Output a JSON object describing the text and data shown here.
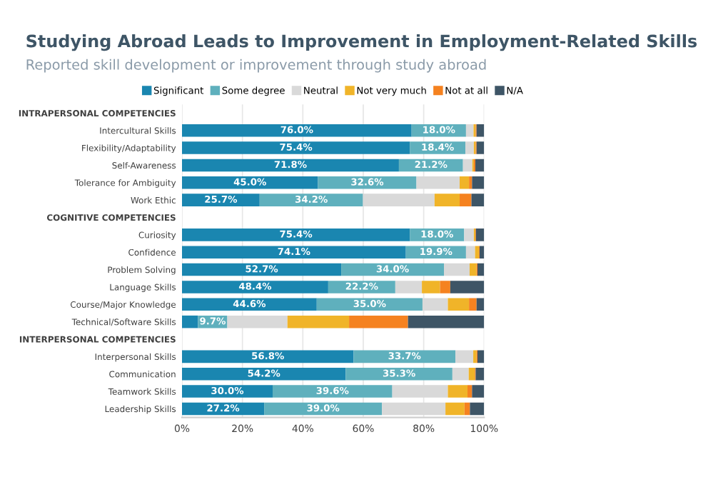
{
  "chart_data": {
    "type": "bar",
    "orientation": "horizontal",
    "stacked": true,
    "title": "Studying Abroad Leads to Improvement in Employment-Related Skills",
    "subtitle": "Reported skill development or improvement through study abroad",
    "categories": [
      "INTRAPERSONAL COMPETENCIES",
      "Intercultural Skills",
      "Flexibility/Adaptability",
      "Self-Awareness",
      "Tolerance for Ambiguity",
      "Work Ethic",
      "COGNITIVE COMPETENCIES",
      "Curiosity",
      "Confidence",
      "Problem Solving",
      "Language Skills",
      "Course/Major Knowledge",
      "Technical/Software Skills",
      "INTERPERSONAL COMPETENCIES",
      "Interpersonal Skills",
      "Communication",
      "Teamwork Skills",
      "Leadership Skills"
    ],
    "series": [
      {
        "name": "Significant",
        "color": "#1a86b0",
        "values": [
          null,
          76.0,
          75.4,
          71.8,
          45.0,
          25.7,
          null,
          75.4,
          74.1,
          52.7,
          48.4,
          44.6,
          5.3,
          null,
          56.8,
          54.2,
          30.0,
          27.2
        ],
        "value_labels": [
          null,
          "76.0%",
          "75.4%",
          "71.8%",
          "45.0%",
          "25.7%",
          null,
          "75.4%",
          "74.1%",
          "52.7%",
          "48.4%",
          "44.6%",
          null,
          null,
          "56.8%",
          "54.2%",
          "30.0%",
          "27.2%"
        ]
      },
      {
        "name": "Some degree",
        "color": "#5fb0bd",
        "values": [
          null,
          18.0,
          18.4,
          21.2,
          32.6,
          34.2,
          null,
          18.0,
          19.9,
          34.0,
          22.2,
          35.0,
          9.7,
          null,
          33.7,
          35.3,
          39.6,
          39.0
        ],
        "value_labels": [
          null,
          "18.0%",
          "18.4%",
          "21.2%",
          "32.6%",
          "34.2%",
          null,
          "18.0%",
          "19.9%",
          "34.0%",
          "22.2%",
          "35.0%",
          "9.7%",
          null,
          "33.7%",
          "35.3%",
          "39.6%",
          "39.0%"
        ]
      },
      {
        "name": "Neutral",
        "color": "#d9d9d9",
        "values": [
          null,
          2.5,
          2.8,
          3.1,
          14.3,
          23.7,
          null,
          3.2,
          3.0,
          8.5,
          8.8,
          8.4,
          19.9,
          null,
          5.9,
          5.4,
          18.4,
          21.0
        ]
      },
      {
        "name": "Not very much",
        "color": "#f0b429",
        "values": [
          null,
          0.7,
          0.6,
          0.5,
          3.1,
          8.3,
          null,
          0.5,
          1.3,
          2.3,
          6.0,
          7.0,
          20.4,
          null,
          1.1,
          2.0,
          6.5,
          6.3
        ]
      },
      {
        "name": "Not at all",
        "color": "#f58220",
        "values": [
          null,
          0.3,
          0.3,
          0.5,
          1.0,
          3.9,
          null,
          0.2,
          0.2,
          0.3,
          3.4,
          2.5,
          19.5,
          null,
          0.3,
          0.3,
          1.5,
          1.8
        ]
      },
      {
        "name": "N/A",
        "color": "#3e5566",
        "values": [
          null,
          2.5,
          2.5,
          2.9,
          4.0,
          4.2,
          null,
          2.7,
          1.5,
          2.2,
          11.2,
          2.5,
          25.2,
          null,
          2.2,
          2.8,
          4.0,
          4.7
        ]
      }
    ],
    "xlim": [
      0,
      100
    ],
    "xticks": [
      {
        "value": 0,
        "label": "0%"
      },
      {
        "value": 20,
        "label": "20%"
      },
      {
        "value": 40,
        "label": "40%"
      },
      {
        "value": 60,
        "label": "60%"
      },
      {
        "value": 80,
        "label": "80%"
      },
      {
        "value": 100,
        "label": "100%"
      }
    ],
    "grid": "x",
    "legend": "top"
  }
}
